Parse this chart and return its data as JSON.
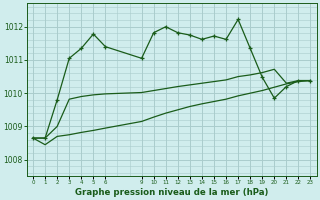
{
  "title": "Graphe pression niveau de la mer (hPa)",
  "background_color": "#d0eded",
  "grid_color": "#aacccc",
  "line_color": "#1a5c1a",
  "ylim": [
    1007.5,
    1012.7
  ],
  "yticks": [
    1008,
    1009,
    1010,
    1011,
    1012
  ],
  "x_ticks_all": [
    0,
    1,
    2,
    3,
    4,
    5,
    6,
    9,
    10,
    11,
    12,
    13,
    14,
    15,
    16,
    17,
    18,
    19,
    20,
    21,
    22,
    23
  ],
  "series1_x": [
    0,
    1,
    2,
    3,
    4,
    5,
    6,
    9,
    10,
    11,
    12,
    13,
    14,
    15,
    16,
    17,
    18,
    19,
    20,
    21,
    22,
    23
  ],
  "series1_y": [
    1008.65,
    1008.65,
    1009.8,
    1011.05,
    1011.35,
    1011.78,
    1011.4,
    1011.05,
    1011.82,
    1012.0,
    1011.82,
    1011.75,
    1011.62,
    1011.72,
    1011.62,
    1012.22,
    1011.35,
    1010.48,
    1009.85,
    1010.2,
    1010.38,
    1010.38
  ],
  "series2_x": [
    0,
    1,
    2,
    3,
    4,
    5,
    6,
    9,
    10,
    11,
    12,
    13,
    14,
    15,
    16,
    17,
    18,
    19,
    20,
    21,
    22,
    23
  ],
  "series2_y": [
    1008.65,
    1008.65,
    1009.0,
    1009.82,
    1009.9,
    1009.95,
    1009.98,
    1010.02,
    1010.08,
    1010.14,
    1010.2,
    1010.25,
    1010.3,
    1010.35,
    1010.4,
    1010.5,
    1010.55,
    1010.62,
    1010.72,
    1010.3,
    1010.38,
    1010.38
  ],
  "series3_x": [
    0,
    1,
    2,
    3,
    4,
    5,
    6,
    9,
    10,
    11,
    12,
    13,
    14,
    15,
    16,
    17,
    18,
    19,
    20,
    21,
    22,
    23
  ],
  "series3_y": [
    1008.65,
    1008.45,
    1008.7,
    1008.75,
    1008.82,
    1008.88,
    1008.95,
    1009.15,
    1009.28,
    1009.4,
    1009.5,
    1009.6,
    1009.68,
    1009.75,
    1009.82,
    1009.92,
    1010.0,
    1010.08,
    1010.18,
    1010.28,
    1010.35,
    1010.38
  ]
}
